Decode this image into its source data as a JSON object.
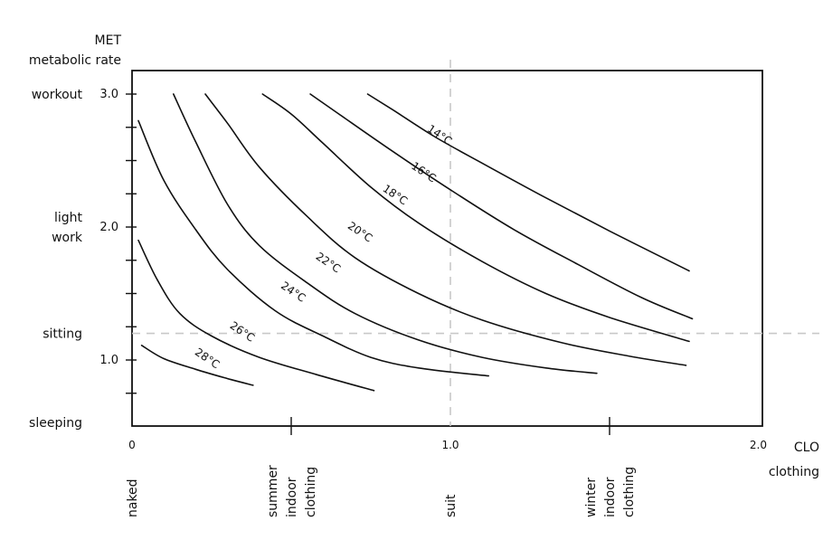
{
  "chart_data": {
    "type": "line",
    "title": "",
    "ylabel": "MET\nmetabolic rate",
    "xlabel": "CLO\nclothing",
    "xlim": [
      0,
      2.0
    ],
    "ylim": [
      0.5,
      3.2
    ],
    "grid": false,
    "x_ticks": [
      {
        "value": 0,
        "label": "0"
      },
      {
        "value": 1.0,
        "label": "1.0"
      },
      {
        "value": 2.0,
        "label": "2.0"
      }
    ],
    "x_minor_ticks": [
      0.5,
      1.5
    ],
    "y_ticks": [
      {
        "value": 1.0,
        "label": "1.0"
      },
      {
        "value": 2.0,
        "label": "2.0"
      },
      {
        "value": 3.0,
        "label": "3.0"
      }
    ],
    "y_minor_ticks": [
      0.75,
      1.25,
      1.5,
      1.75,
      2.25,
      2.5,
      2.75
    ],
    "y_activity_labels": [
      {
        "y": 3.0,
        "lines": [
          "workout"
        ]
      },
      {
        "y": 2.0,
        "lines": [
          "light",
          "work"
        ]
      },
      {
        "y": 1.2,
        "lines": [
          "sitting"
        ]
      },
      {
        "y": 0.7,
        "lines": [
          "sleeping"
        ]
      }
    ],
    "x_clothing_labels": [
      {
        "x": 0,
        "lines": [
          "naked"
        ]
      },
      {
        "x": 0.5,
        "lines": [
          "summer",
          "indoor",
          "clothing"
        ]
      },
      {
        "x": 1.0,
        "lines": [
          "suit"
        ]
      },
      {
        "x": 1.5,
        "lines": [
          "winter",
          "indoor",
          "clothing"
        ]
      }
    ],
    "reference_lines": [
      {
        "axis": "x",
        "value": 1.0
      },
      {
        "axis": "y",
        "value": 1.2
      }
    ],
    "series": [
      {
        "name": "28°C",
        "label_at": [
          0.23,
          0.99
        ],
        "points": [
          [
            0.03,
            1.11
          ],
          [
            0.1,
            1.01
          ],
          [
            0.2,
            0.93
          ],
          [
            0.3,
            0.86
          ],
          [
            0.38,
            0.81
          ]
        ]
      },
      {
        "name": "26°C",
        "label_at": [
          0.34,
          1.19
        ],
        "points": [
          [
            0.02,
            1.9
          ],
          [
            0.08,
            1.6
          ],
          [
            0.15,
            1.35
          ],
          [
            0.25,
            1.18
          ],
          [
            0.4,
            1.02
          ],
          [
            0.58,
            0.89
          ],
          [
            0.76,
            0.77
          ]
        ]
      },
      {
        "name": "24°C",
        "label_at": [
          0.5,
          1.49
        ],
        "points": [
          [
            0.02,
            2.8
          ],
          [
            0.1,
            2.35
          ],
          [
            0.2,
            1.98
          ],
          [
            0.3,
            1.68
          ],
          [
            0.45,
            1.37
          ],
          [
            0.6,
            1.18
          ],
          [
            0.75,
            1.02
          ],
          [
            0.9,
            0.94
          ],
          [
            1.12,
            0.88
          ]
        ]
      },
      {
        "name": "22°C",
        "label_at": [
          0.61,
          1.71
        ],
        "points": [
          [
            0.13,
            3.0
          ],
          [
            0.2,
            2.64
          ],
          [
            0.3,
            2.17
          ],
          [
            0.4,
            1.86
          ],
          [
            0.55,
            1.58
          ],
          [
            0.7,
            1.35
          ],
          [
            0.9,
            1.15
          ],
          [
            1.1,
            1.02
          ],
          [
            1.3,
            0.94
          ],
          [
            1.46,
            0.9
          ]
        ]
      },
      {
        "name": "20°C",
        "label_at": [
          0.71,
          1.94
        ],
        "points": [
          [
            0.23,
            3.0
          ],
          [
            0.3,
            2.78
          ],
          [
            0.4,
            2.45
          ],
          [
            0.55,
            2.08
          ],
          [
            0.7,
            1.77
          ],
          [
            0.9,
            1.5
          ],
          [
            1.1,
            1.3
          ],
          [
            1.35,
            1.13
          ],
          [
            1.56,
            1.03
          ],
          [
            1.74,
            0.96
          ]
        ]
      },
      {
        "name": "18°C",
        "label_at": [
          0.82,
          2.22
        ],
        "points": [
          [
            0.41,
            3.0
          ],
          [
            0.5,
            2.85
          ],
          [
            0.6,
            2.63
          ],
          [
            0.75,
            2.3
          ],
          [
            0.9,
            2.03
          ],
          [
            1.1,
            1.74
          ],
          [
            1.3,
            1.5
          ],
          [
            1.5,
            1.32
          ],
          [
            1.75,
            1.14
          ]
        ]
      },
      {
        "name": "16°C",
        "label_at": [
          0.91,
          2.39
        ],
        "points": [
          [
            0.56,
            3.0
          ],
          [
            0.65,
            2.85
          ],
          [
            0.8,
            2.6
          ],
          [
            1.0,
            2.28
          ],
          [
            1.2,
            1.98
          ],
          [
            1.4,
            1.72
          ],
          [
            1.6,
            1.47
          ],
          [
            1.76,
            1.31
          ]
        ]
      },
      {
        "name": "14°C",
        "label_at": [
          0.96,
          2.67
        ],
        "points": [
          [
            0.74,
            3.0
          ],
          [
            0.82,
            2.88
          ],
          [
            0.95,
            2.68
          ],
          [
            1.1,
            2.48
          ],
          [
            1.3,
            2.22
          ],
          [
            1.5,
            1.97
          ],
          [
            1.7,
            1.73
          ],
          [
            1.75,
            1.67
          ]
        ]
      }
    ]
  }
}
